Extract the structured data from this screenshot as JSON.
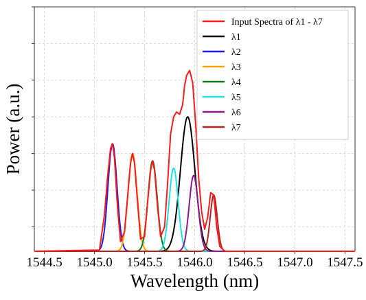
{
  "chart_data": {
    "type": "line",
    "title": "",
    "xlabel": "Wavelength (nm)",
    "ylabel": "Power (a.u.)",
    "xlim": [
      1544.4,
      1547.6
    ],
    "ylim": [
      0,
      1.0
    ],
    "x_ticks": [
      1544.5,
      1545.0,
      1545.5,
      1546.0,
      1546.5,
      1547.0,
      1547.5
    ],
    "x_tick_labels": [
      "1544.5",
      "1545.0",
      "1545.5",
      "1546.0",
      "1546.5",
      "1547.0",
      "1547.5"
    ],
    "y_tick_labels": [],
    "grid": true,
    "legend_position": "top-right",
    "series": [
      {
        "name": "Input Spectra of  λ1 - λ7",
        "color": "#ff1a1a",
        "x": [
          1544.4,
          1545.05,
          1545.1,
          1545.13,
          1545.16,
          1545.18,
          1545.2,
          1545.23,
          1545.26,
          1545.3,
          1545.33,
          1545.36,
          1545.38,
          1545.4,
          1545.43,
          1545.46,
          1545.5,
          1545.53,
          1545.56,
          1545.58,
          1545.6,
          1545.63,
          1545.66,
          1545.7,
          1545.73,
          1545.76,
          1545.79,
          1545.82,
          1545.85,
          1545.88,
          1545.9,
          1545.92,
          1545.95,
          1545.98,
          1546.01,
          1546.04,
          1546.07,
          1546.1,
          1546.13,
          1546.16,
          1546.19,
          1546.22,
          1546.25,
          1546.3,
          1547.6
        ],
        "y": [
          0,
          0.005,
          0.15,
          0.3,
          0.42,
          0.44,
          0.38,
          0.18,
          0.04,
          0.08,
          0.22,
          0.36,
          0.4,
          0.36,
          0.2,
          0.05,
          0.06,
          0.2,
          0.33,
          0.37,
          0.33,
          0.18,
          0.06,
          0.1,
          0.28,
          0.48,
          0.55,
          0.57,
          0.56,
          0.6,
          0.68,
          0.72,
          0.74,
          0.69,
          0.52,
          0.3,
          0.16,
          0.09,
          0.14,
          0.24,
          0.23,
          0.1,
          0.02,
          0.0,
          0
        ]
      },
      {
        "name": "λ1",
        "color": "#000000",
        "center": 1545.93,
        "peak": 0.55,
        "width": 0.072
      },
      {
        "name": "λ2",
        "color": "#1f1fd6",
        "center": 1545.18,
        "peak": 0.44,
        "width": 0.045
      },
      {
        "name": "λ3",
        "color": "#ffa500",
        "center": 1545.38,
        "peak": 0.4,
        "width": 0.045
      },
      {
        "name": "λ4",
        "color": "#0a7d10",
        "center": 1545.58,
        "peak": 0.37,
        "width": 0.045
      },
      {
        "name": "λ5",
        "color": "#1fe0e6",
        "center": 1545.79,
        "peak": 0.34,
        "width": 0.045
      },
      {
        "name": "λ6",
        "color": "#8b1a8b",
        "center": 1545.99,
        "peak": 0.31,
        "width": 0.045
      },
      {
        "name": "λ7",
        "color": "#b22222",
        "center": 1546.19,
        "peak": 0.23,
        "width": 0.035
      }
    ]
  }
}
